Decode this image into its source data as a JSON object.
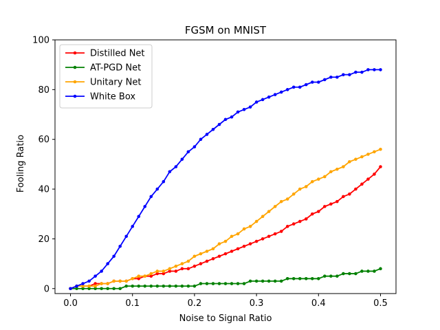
{
  "chart_data": {
    "type": "line",
    "title": "FGSM on MNIST",
    "xlabel": "Noise to Signal Ratio",
    "ylabel": "Fooling Ratio",
    "xlim": [
      -0.025,
      0.525
    ],
    "ylim": [
      -2,
      100
    ],
    "xticks": [
      0.0,
      0.1,
      0.2,
      0.3,
      0.4,
      0.5
    ],
    "xtick_labels": [
      "0.0",
      "0.1",
      "0.2",
      "0.3",
      "0.4",
      "0.5"
    ],
    "yticks": [
      0,
      20,
      40,
      60,
      80,
      100
    ],
    "ytick_labels": [
      "0",
      "20",
      "40",
      "60",
      "80",
      "100"
    ],
    "grid": false,
    "legend_position": "top-left",
    "x": [
      0.0,
      0.01,
      0.02,
      0.03,
      0.04,
      0.05,
      0.06,
      0.07,
      0.08,
      0.09,
      0.1,
      0.11,
      0.12,
      0.13,
      0.14,
      0.15,
      0.16,
      0.17,
      0.18,
      0.19,
      0.2,
      0.21,
      0.22,
      0.23,
      0.24,
      0.25,
      0.26,
      0.27,
      0.28,
      0.29,
      0.3,
      0.31,
      0.32,
      0.33,
      0.34,
      0.35,
      0.36,
      0.37,
      0.38,
      0.39,
      0.4,
      0.41,
      0.42,
      0.43,
      0.44,
      0.45,
      0.46,
      0.47,
      0.48,
      0.49,
      0.5
    ],
    "series": [
      {
        "name": "Distilled Net",
        "color": "#ff0000",
        "values": [
          0,
          1,
          1,
          1,
          2,
          2,
          2,
          3,
          3,
          3,
          4,
          4,
          5,
          5,
          6,
          6,
          7,
          7,
          8,
          8,
          9,
          10,
          11,
          12,
          13,
          14,
          15,
          16,
          17,
          18,
          19,
          20,
          21,
          22,
          23,
          25,
          26,
          27,
          28,
          30,
          31,
          33,
          34,
          35,
          37,
          38,
          40,
          42,
          44,
          46,
          49
        ]
      },
      {
        "name": "AT-PGD Net",
        "color": "#008000",
        "values": [
          0,
          0,
          0,
          0,
          0,
          0,
          0,
          0,
          0,
          1,
          1,
          1,
          1,
          1,
          1,
          1,
          1,
          1,
          1,
          1,
          1,
          2,
          2,
          2,
          2,
          2,
          2,
          2,
          2,
          3,
          3,
          3,
          3,
          3,
          3,
          4,
          4,
          4,
          4,
          4,
          4,
          5,
          5,
          5,
          6,
          6,
          6,
          7,
          7,
          7,
          8
        ]
      },
      {
        "name": "Unitary Net",
        "color": "#ffa500",
        "values": [
          0,
          1,
          1,
          1,
          1,
          2,
          2,
          3,
          3,
          3,
          4,
          5,
          5,
          6,
          7,
          7,
          8,
          9,
          10,
          11,
          13,
          14,
          15,
          16,
          18,
          19,
          21,
          22,
          24,
          25,
          27,
          29,
          31,
          33,
          35,
          36,
          38,
          40,
          41,
          43,
          44,
          45,
          47,
          48,
          49,
          51,
          52,
          53,
          54,
          55,
          56
        ]
      },
      {
        "name": "White Box",
        "color": "#0000ff",
        "values": [
          0,
          1,
          2,
          3,
          5,
          7,
          10,
          13,
          17,
          21,
          25,
          29,
          33,
          37,
          40,
          43,
          47,
          49,
          52,
          55,
          57,
          60,
          62,
          64,
          66,
          68,
          69,
          71,
          72,
          73,
          75,
          76,
          77,
          78,
          79,
          80,
          81,
          81,
          82,
          83,
          83,
          84,
          85,
          85,
          86,
          86,
          87,
          87,
          88,
          88,
          88
        ]
      }
    ]
  }
}
